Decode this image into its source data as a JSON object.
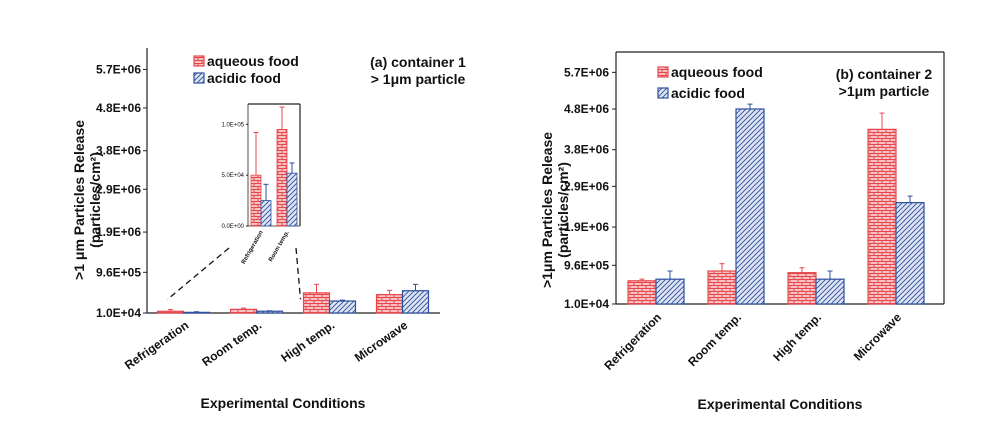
{
  "colors": {
    "aqueous": "#e8474c",
    "aqueous_fill": "#f6c2c4",
    "acidic": "#2d4f9e",
    "acidic_fill": "#dde3f0",
    "axis": "#222222"
  },
  "chart_data": [
    {
      "type": "bar",
      "panel": "a",
      "annotation_line1": "(a) container 1",
      "annotation_line2": "> 1μm particle",
      "ylabel_line1": ">1 μm Particles Release",
      "ylabel_line2": "(particles/cm²)",
      "xlabel": "Experimental Conditions",
      "ylim": [
        10000,
        6200000
      ],
      "yticks": [
        10000,
        960000,
        1900000,
        2900000,
        3800000,
        4800000,
        5700000
      ],
      "ytick_labels": [
        "1.0E+04",
        "9.6E+05",
        "1.9E+06",
        "2.9E+06",
        "3.8E+06",
        "4.8E+06",
        "5.7E+06"
      ],
      "categories": [
        "Refrigeration",
        "Room temp.",
        "High temp.",
        "Microwave"
      ],
      "series": [
        {
          "name": "aqueous food",
          "values": [
            50000,
            95000,
            480000,
            440000
          ],
          "errors": [
            40000,
            30000,
            200000,
            100000
          ]
        },
        {
          "name": "acidic food",
          "values": [
            25000,
            52000,
            290000,
            530000
          ],
          "errors": [
            15000,
            10000,
            20000,
            150000
          ]
        }
      ],
      "inset": {
        "ylim": [
          0,
          120000
        ],
        "yticks": [
          0,
          50000,
          100000
        ],
        "ytick_labels": [
          "0.0E+00",
          "5.0E+04",
          "1.0E+05"
        ],
        "categories": [
          "Refrigeration",
          "Room temp."
        ],
        "series": [
          {
            "name": "aqueous food",
            "values": [
              50000,
              95000
            ],
            "errors": [
              42000,
              22000
            ]
          },
          {
            "name": "acidic food",
            "values": [
              25000,
              52000
            ],
            "errors": [
              16000,
              10000
            ]
          }
        ]
      }
    },
    {
      "type": "bar",
      "panel": "b",
      "annotation_line1": "(b) container 2",
      "annotation_line2": ">1μm particle",
      "ylabel_line1": ">1μm Particles Release",
      "ylabel_line2": "(particles/cm²)",
      "xlabel": "Experimental Conditions",
      "ylim": [
        10000,
        6200000
      ],
      "yticks": [
        10000,
        960000,
        1900000,
        2900000,
        3800000,
        4800000,
        5700000
      ],
      "ytick_labels": [
        "1.0E+04",
        "9.6E+05",
        "1.9E+06",
        "2.9E+06",
        "3.8E+06",
        "4.8E+06",
        "5.7E+06"
      ],
      "categories": [
        "Refrigeration",
        "Room temp.",
        "High temp.",
        "Microwave"
      ],
      "series": [
        {
          "name": "aqueous food",
          "values": [
            580000,
            820000,
            780000,
            4300000
          ],
          "errors": [
            40000,
            180000,
            120000,
            400000
          ]
        },
        {
          "name": "acidic food",
          "values": [
            620000,
            4800000,
            620000,
            2500000
          ],
          "errors": [
            200000,
            120000,
            200000,
            160000
          ]
        }
      ]
    }
  ]
}
